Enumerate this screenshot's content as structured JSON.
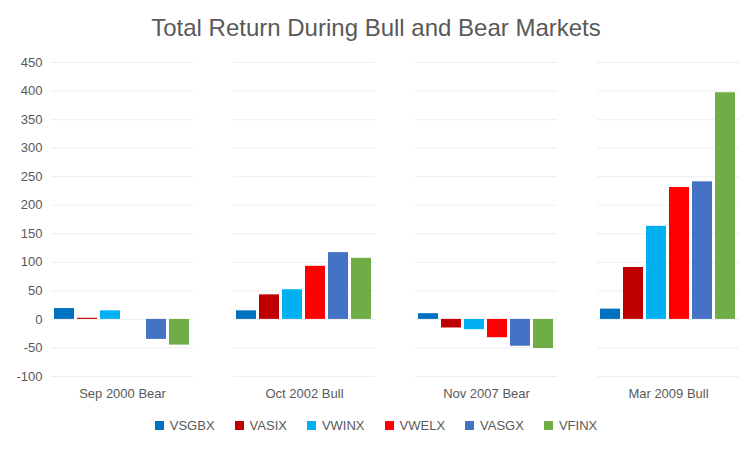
{
  "chart_data": {
    "type": "bar",
    "title": "Total Return During Bull and Bear Markets",
    "categories": [
      "Sep 2000 Bear",
      "Oct 2002 Bull",
      "Nov 2007 Bear",
      "Mar 2009 Bull"
    ],
    "series": [
      {
        "name": "VSGBX",
        "color": "#0070C0",
        "values": [
          19,
          15,
          10,
          18
        ]
      },
      {
        "name": "VASIX",
        "color": "#C00000",
        "values": [
          2,
          43,
          -15,
          91
        ]
      },
      {
        "name": "VWINX",
        "color": "#00B0F0",
        "values": [
          15,
          52,
          -18,
          163
        ]
      },
      {
        "name": "VWELX",
        "color": "#FF0000",
        "values": [
          0,
          93,
          -32,
          231
        ]
      },
      {
        "name": "VASGX",
        "color": "#4472C4",
        "values": [
          -35,
          117,
          -47,
          241
        ]
      },
      {
        "name": "VFINX",
        "color": "#70AD47",
        "values": [
          -45,
          107,
          -51,
          397
        ]
      }
    ],
    "ylim": [
      -100,
      450
    ],
    "yticks": [
      -100,
      -50,
      0,
      50,
      100,
      150,
      200,
      250,
      300,
      350,
      400,
      450
    ],
    "grid": true,
    "legend": "bottom"
  }
}
